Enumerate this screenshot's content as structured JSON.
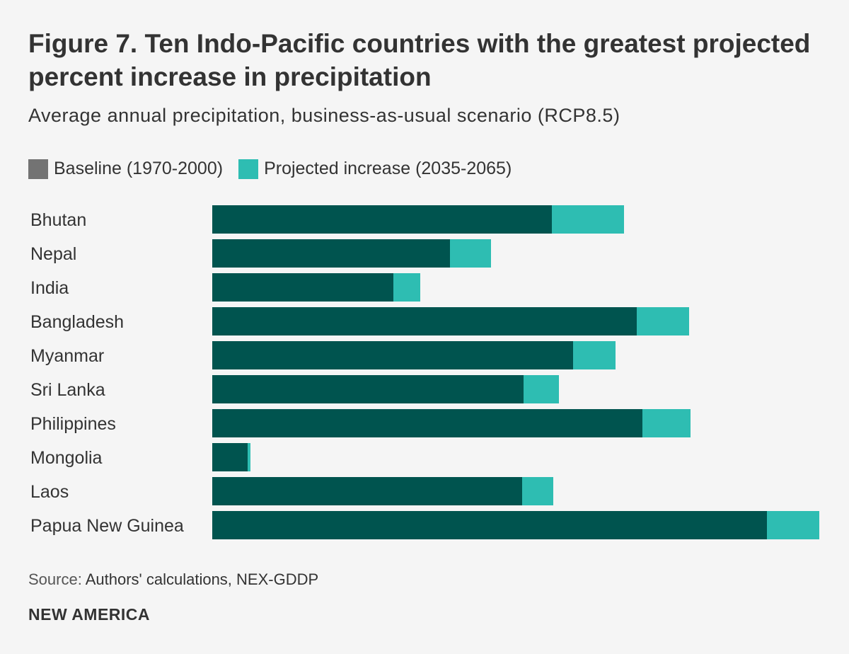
{
  "colors": {
    "baseline": "#00544f",
    "increase": "#2ebdb2",
    "legend_baseline": "#737373"
  },
  "chart_data": {
    "type": "bar",
    "orientation": "horizontal",
    "stacked": true,
    "title": "Figure 7. Ten Indo-Pacific countries with the greatest projected percent increase in precipitation",
    "subtitle": "Average annual precipitation, business-as-usual scenario (RCP8.5)",
    "categories": [
      "Bhutan",
      "Nepal",
      "India",
      "Bangladesh",
      "Myanmar",
      "Sri Lanka",
      "Philippines",
      "Mongolia",
      "Laos",
      "Papua New Guinea"
    ],
    "series": [
      {
        "name": "Baseline (1970-2000)",
        "values": [
          2400,
          1680,
          1280,
          3000,
          2550,
          2200,
          3040,
          250,
          2190,
          3920
        ]
      },
      {
        "name": "Projected increase (2035-2065)",
        "values": [
          510,
          290,
          190,
          370,
          300,
          250,
          340,
          20,
          220,
          370
        ]
      }
    ],
    "xlim": [
      0,
      4290
    ],
    "xlabel": "",
    "ylabel": "",
    "grid": false,
    "legend_position": "top-left"
  },
  "source": {
    "label": "Source:",
    "text": " Authors' calculations, NEX-GDDP"
  },
  "brand": "NEW AMERICA"
}
